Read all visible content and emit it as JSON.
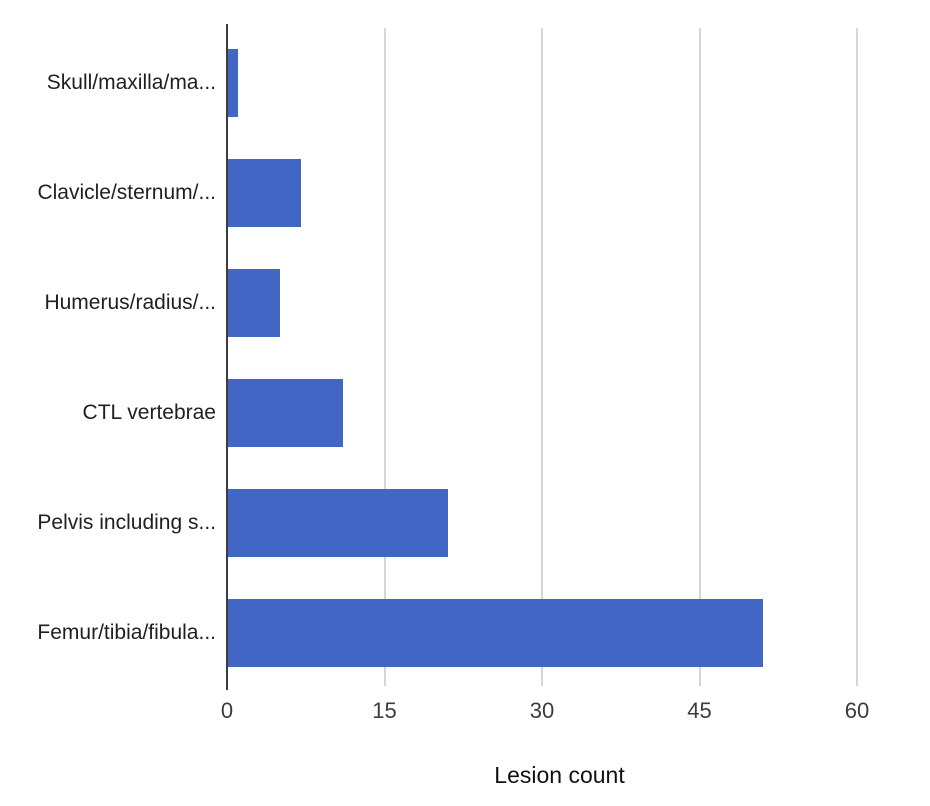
{
  "chart_data": {
    "type": "bar",
    "orientation": "horizontal",
    "categories": [
      "Skull/maxilla/ma...",
      "Clavicle/sternum/...",
      "Humerus/radius/...",
      "CTL vertebrae",
      "Pelvis including s...",
      "Femur/tibia/fibula..."
    ],
    "values": [
      1,
      7,
      5,
      11,
      21,
      51
    ],
    "xlabel": "Lesion count",
    "xlim": [
      0,
      60
    ],
    "xticks": [
      0,
      15,
      30,
      45,
      60
    ],
    "grid": true,
    "legend_position": "none",
    "colors": {
      "bar": "#4166C4",
      "gridline": "#d6d6d6",
      "axis": "#3c3c3c",
      "category_label": "#1f1f1f",
      "tick_label": "#3c3c3c",
      "axis_title": "#111111",
      "background": "#ffffff"
    }
  }
}
